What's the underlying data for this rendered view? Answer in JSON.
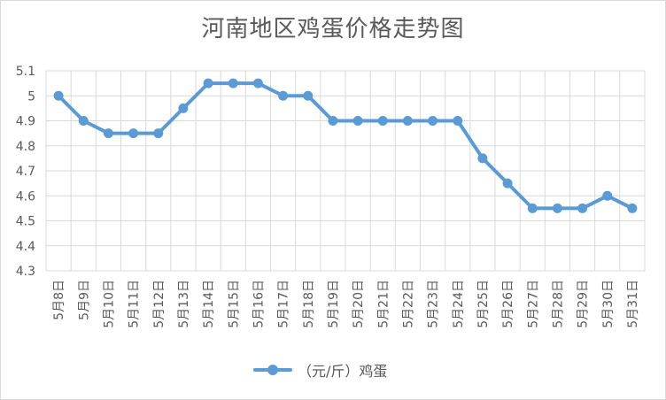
{
  "chart_data": {
    "type": "line",
    "title": "河南地区鸡蛋价格走势图",
    "categories": [
      "5月8日",
      "5月9日",
      "5月10日",
      "5月11日",
      "5月12日",
      "5月13日",
      "5月14日",
      "5月15日",
      "5月16日",
      "5月17日",
      "5月18日",
      "5月19日",
      "5月20日",
      "5月21日",
      "5月22日",
      "5月23日",
      "5月24日",
      "5月25日",
      "5月26日",
      "5月27日",
      "5月28日",
      "5月29日",
      "5月30日",
      "5月31日"
    ],
    "series": [
      {
        "name": "（元/斤）鸡蛋",
        "values": [
          5.0,
          4.9,
          4.85,
          4.85,
          4.85,
          4.95,
          5.05,
          5.05,
          5.05,
          5.0,
          5.0,
          4.9,
          4.9,
          4.9,
          4.9,
          4.9,
          4.9,
          4.75,
          4.65,
          4.55,
          4.55,
          4.55,
          4.6,
          4.55
        ],
        "color": "#5b9bd5"
      }
    ],
    "ylim": [
      4.3,
      5.1
    ],
    "yticks": [
      "5.1",
      "5",
      "4.9",
      "4.8",
      "4.7",
      "4.6",
      "4.5",
      "4.4",
      "4.3"
    ],
    "grid": true,
    "legend": "bottom",
    "xlabel": "",
    "ylabel": ""
  },
  "colors": {
    "series": "#5b9bd5",
    "grid": "#d9d9d9",
    "text": "#595959"
  }
}
